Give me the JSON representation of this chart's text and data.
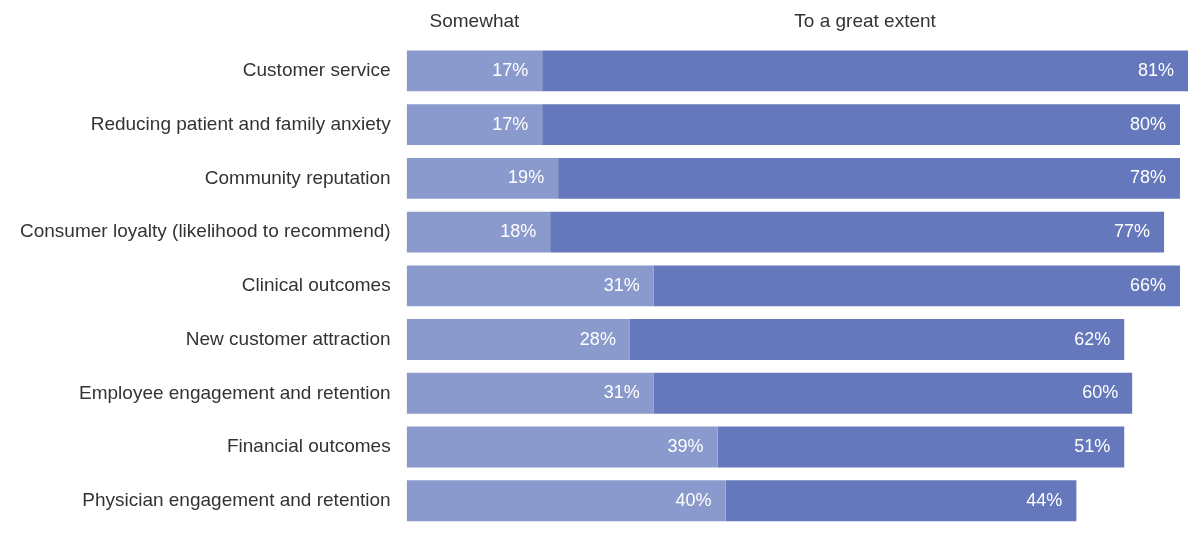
{
  "chart_data": {
    "type": "bar",
    "orientation": "horizontal",
    "stacked": true,
    "legend": "top",
    "categories": [
      "Customer service",
      "Reducing patient and family anxiety",
      "Community reputation",
      "Consumer loyalty (likelihood to recommend)",
      "Clinical outcomes",
      "New customer attraction",
      "Employee engagement and retention",
      "Financial outcomes",
      "Physician engagement and retention"
    ],
    "series": [
      {
        "name": "Somewhat",
        "color": "#8a9acc",
        "values": [
          17,
          17,
          19,
          18,
          31,
          28,
          31,
          39,
          40
        ],
        "value_labels": [
          "17%",
          "17%",
          "19%",
          "18%",
          "31%",
          "28%",
          "31%",
          "39%",
          "40%"
        ]
      },
      {
        "name": "To a great extent",
        "color": "#6478bb",
        "values": [
          81,
          80,
          78,
          77,
          66,
          62,
          60,
          51,
          44
        ],
        "value_labels": [
          "81%",
          "80%",
          "78%",
          "77%",
          "66%",
          "62%",
          "60%",
          "51%",
          "44%"
        ]
      }
    ]
  }
}
